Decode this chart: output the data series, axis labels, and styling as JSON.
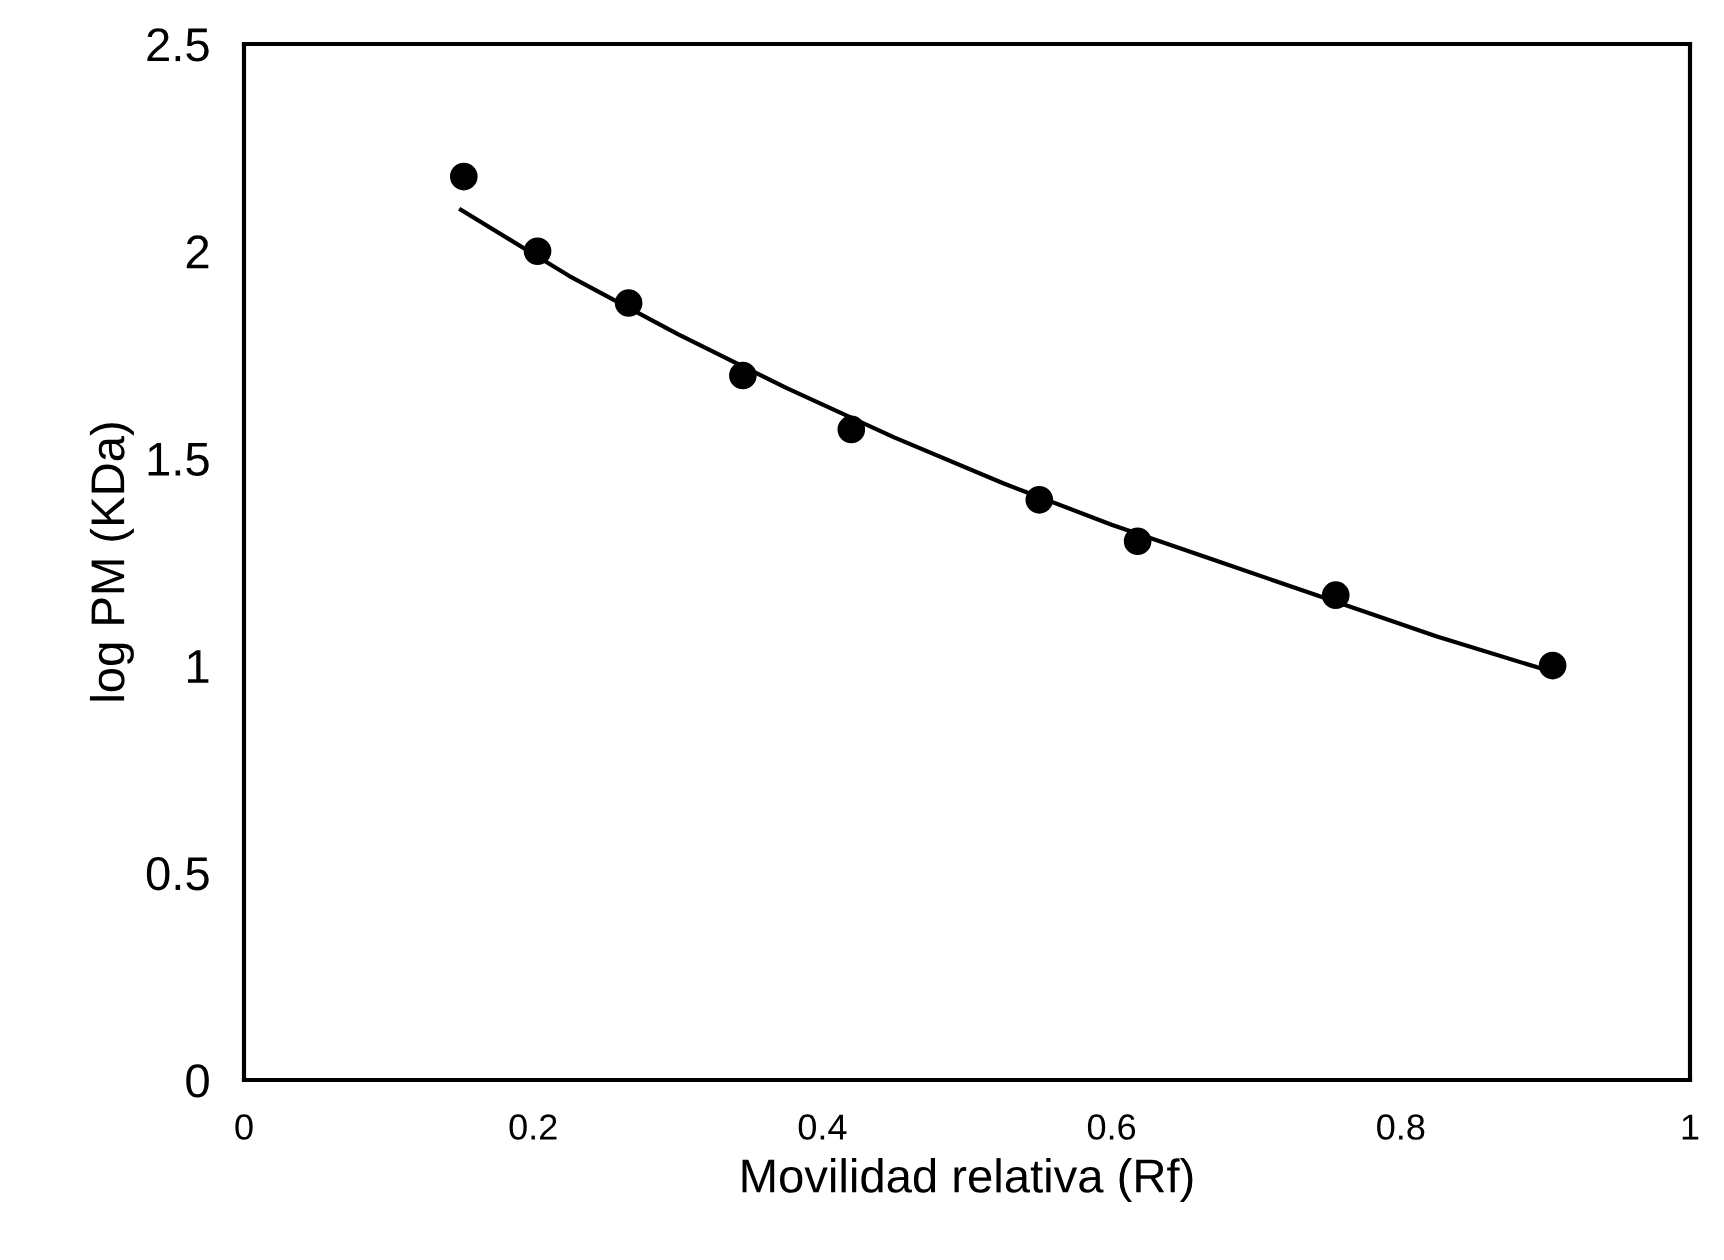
{
  "chart_data": {
    "type": "scatter",
    "xlabel": "Movilidad relativa (Rf)",
    "ylabel": "log PM (KDa)",
    "xlim": [
      0,
      1
    ],
    "xticks": [
      0,
      0.2,
      0.4,
      0.6,
      0.8,
      1
    ],
    "ylim": [
      0,
      2.5
    ],
    "yticks": [
      0,
      0.5,
      1,
      1.5,
      2,
      2.5
    ],
    "grid": false,
    "legend": false,
    "series": [
      {
        "color": "#000000",
        "marker": "circle",
        "x": [
          0.152,
          0.203,
          0.266,
          0.345,
          0.42,
          0.55,
          0.618,
          0.755,
          0.905
        ],
        "values": [
          2.18,
          2.0,
          1.875,
          1.7,
          1.57,
          1.4,
          1.3,
          1.17,
          1.0
        ]
      },
      {
        "type": "line",
        "color": "#000000",
        "marker": "none",
        "line_style": "solid",
        "x": [
          0.15,
          0.225,
          0.3,
          0.375,
          0.45,
          0.525,
          0.6,
          0.675,
          0.75,
          0.825,
          0.9
        ],
        "values": [
          2.1,
          1.94,
          1.8,
          1.67,
          1.55,
          1.44,
          1.34,
          1.25,
          1.16,
          1.07,
          0.99
        ]
      }
    ]
  }
}
